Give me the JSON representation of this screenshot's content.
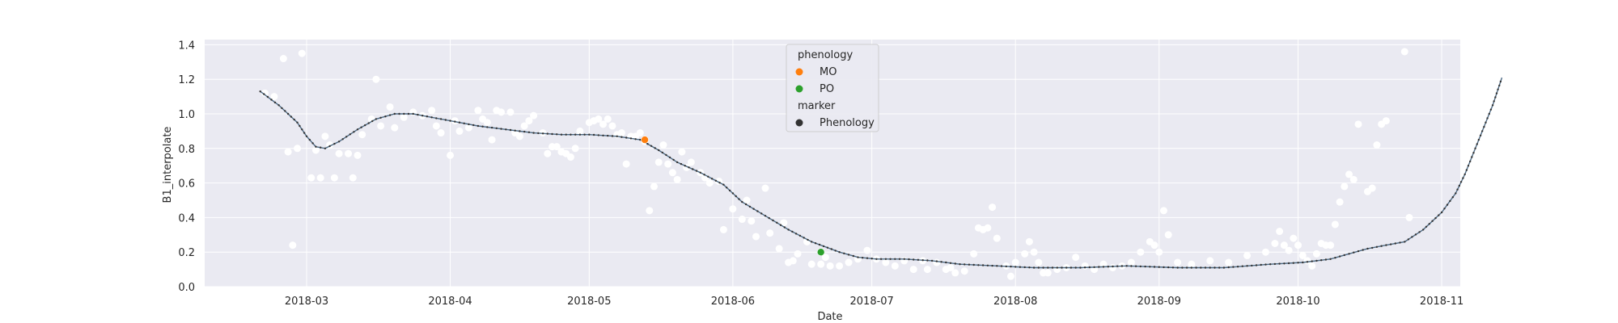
{
  "chart_data": {
    "type": "scatter",
    "title": "",
    "xlabel": "Date",
    "ylabel": "B1_interpolate",
    "xlim": [
      "2018-02-07",
      "2018-11-05"
    ],
    "ylim": [
      0,
      1.43
    ],
    "grid": true,
    "x_ticks": [
      "2018-03-01",
      "2018-04-01",
      "2018-05-01",
      "2018-06-01",
      "2018-07-01",
      "2018-08-01",
      "2018-09-01",
      "2018-10-01",
      "2018-11-01"
    ],
    "x_tick_labels": [
      "2018-03",
      "2018-04",
      "2018-05",
      "2018-06",
      "2018-07",
      "2018-08",
      "2018-09",
      "2018-10",
      "2018-11"
    ],
    "y_ticks": [
      0.0,
      0.2,
      0.4,
      0.6,
      0.8,
      1.0,
      1.2,
      1.4
    ],
    "y_tick_labels": [
      "0.0",
      "0.2",
      "0.4",
      "0.6",
      "0.8",
      "1.0",
      "1.2",
      "1.4"
    ],
    "colors": {
      "background": "#eaeaf2",
      "grid": "#ffffff",
      "observations": "#ffffff",
      "curve": "#4c6a85",
      "MO": "#ff7f0e",
      "PO": "#2ca02c",
      "marker": "#333333"
    },
    "legend": {
      "placement": "top-center",
      "title_hue": "phenology",
      "entries": [
        {
          "label": "MO",
          "color": "#ff7f0e"
        },
        {
          "label": "PO",
          "color": "#2ca02c"
        }
      ],
      "title_marker": "marker",
      "marker_entries": [
        {
          "label": "Phenology",
          "color": "#333333"
        }
      ]
    },
    "observations": [
      [
        "2018-02-20",
        1.12
      ],
      [
        "2018-02-22",
        1.1
      ],
      [
        "2018-02-24",
        1.32
      ],
      [
        "2018-02-25",
        0.78
      ],
      [
        "2018-02-26",
        0.24
      ],
      [
        "2018-02-27",
        0.8
      ],
      [
        "2018-02-28",
        1.35
      ],
      [
        "2018-03-02",
        0.63
      ],
      [
        "2018-03-03",
        0.79
      ],
      [
        "2018-03-04",
        0.63
      ],
      [
        "2018-03-05",
        0.87
      ],
      [
        "2018-03-06",
        0.82
      ],
      [
        "2018-03-07",
        0.63
      ],
      [
        "2018-03-08",
        0.77
      ],
      [
        "2018-03-10",
        0.77
      ],
      [
        "2018-03-11",
        0.63
      ],
      [
        "2018-03-12",
        0.76
      ],
      [
        "2018-03-13",
        0.88
      ],
      [
        "2018-03-15",
        0.97
      ],
      [
        "2018-03-16",
        1.2
      ],
      [
        "2018-03-17",
        0.93
      ],
      [
        "2018-03-19",
        1.04
      ],
      [
        "2018-03-20",
        0.92
      ],
      [
        "2018-03-22",
        0.98
      ],
      [
        "2018-03-24",
        1.01
      ],
      [
        "2018-03-26",
        0.99
      ],
      [
        "2018-03-28",
        1.02
      ],
      [
        "2018-03-29",
        0.93
      ],
      [
        "2018-03-30",
        0.89
      ],
      [
        "2018-04-01",
        0.76
      ],
      [
        "2018-04-02",
        0.96
      ],
      [
        "2018-04-03",
        0.9
      ],
      [
        "2018-04-05",
        0.92
      ],
      [
        "2018-04-07",
        1.02
      ],
      [
        "2018-04-08",
        0.97
      ],
      [
        "2018-04-09",
        0.95
      ],
      [
        "2018-04-10",
        0.85
      ],
      [
        "2018-04-11",
        1.02
      ],
      [
        "2018-04-12",
        1.01
      ],
      [
        "2018-04-14",
        1.01
      ],
      [
        "2018-04-15",
        0.89
      ],
      [
        "2018-04-16",
        0.87
      ],
      [
        "2018-04-17",
        0.93
      ],
      [
        "2018-04-18",
        0.96
      ],
      [
        "2018-04-19",
        0.99
      ],
      [
        "2018-04-21",
        0.89
      ],
      [
        "2018-04-22",
        0.77
      ],
      [
        "2018-04-23",
        0.81
      ],
      [
        "2018-04-24",
        0.81
      ],
      [
        "2018-04-25",
        0.78
      ],
      [
        "2018-04-26",
        0.77
      ],
      [
        "2018-04-27",
        0.75
      ],
      [
        "2018-04-28",
        0.8
      ],
      [
        "2018-04-29",
        0.9
      ],
      [
        "2018-05-01",
        0.95
      ],
      [
        "2018-05-02",
        0.96
      ],
      [
        "2018-05-03",
        0.97
      ],
      [
        "2018-05-04",
        0.94
      ],
      [
        "2018-05-05",
        0.97
      ],
      [
        "2018-05-06",
        0.93
      ],
      [
        "2018-05-07",
        0.88
      ],
      [
        "2018-05-08",
        0.89
      ],
      [
        "2018-05-09",
        0.71
      ],
      [
        "2018-05-10",
        0.87
      ],
      [
        "2018-05-11",
        0.87
      ],
      [
        "2018-05-12",
        0.89
      ],
      [
        "2018-05-13",
        0.84
      ],
      [
        "2018-05-14",
        0.44
      ],
      [
        "2018-05-15",
        0.58
      ],
      [
        "2018-05-16",
        0.72
      ],
      [
        "2018-05-17",
        0.82
      ],
      [
        "2018-05-18",
        0.71
      ],
      [
        "2018-05-19",
        0.66
      ],
      [
        "2018-05-20",
        0.62
      ],
      [
        "2018-05-21",
        0.78
      ],
      [
        "2018-05-22",
        0.69
      ],
      [
        "2018-05-23",
        0.72
      ],
      [
        "2018-05-25",
        0.66
      ],
      [
        "2018-05-26",
        0.63
      ],
      [
        "2018-05-27",
        0.6
      ],
      [
        "2018-05-29",
        0.61
      ],
      [
        "2018-05-30",
        0.33
      ],
      [
        "2018-06-01",
        0.45
      ],
      [
        "2018-06-03",
        0.39
      ],
      [
        "2018-06-04",
        0.5
      ],
      [
        "2018-06-05",
        0.38
      ],
      [
        "2018-06-06",
        0.29
      ],
      [
        "2018-06-08",
        0.57
      ],
      [
        "2018-06-09",
        0.31
      ],
      [
        "2018-06-11",
        0.22
      ],
      [
        "2018-06-12",
        0.37
      ],
      [
        "2018-06-13",
        0.14
      ],
      [
        "2018-06-14",
        0.15
      ],
      [
        "2018-06-15",
        0.19
      ],
      [
        "2018-06-17",
        0.26
      ],
      [
        "2018-06-18",
        0.13
      ],
      [
        "2018-06-20",
        0.13
      ],
      [
        "2018-06-21",
        0.17
      ],
      [
        "2018-06-22",
        0.12
      ],
      [
        "2018-06-24",
        0.12
      ],
      [
        "2018-06-26",
        0.14
      ],
      [
        "2018-06-28",
        0.16
      ],
      [
        "2018-06-30",
        0.21
      ],
      [
        "2018-07-02",
        0.16
      ],
      [
        "2018-07-04",
        0.14
      ],
      [
        "2018-07-06",
        0.12
      ],
      [
        "2018-07-08",
        0.15
      ],
      [
        "2018-07-10",
        0.1
      ],
      [
        "2018-07-12",
        0.15
      ],
      [
        "2018-07-13",
        0.1
      ],
      [
        "2018-07-15",
        0.14
      ],
      [
        "2018-07-17",
        0.1
      ],
      [
        "2018-07-18",
        0.11
      ],
      [
        "2018-07-19",
        0.08
      ],
      [
        "2018-07-21",
        0.09
      ],
      [
        "2018-07-23",
        0.19
      ],
      [
        "2018-07-24",
        0.34
      ],
      [
        "2018-07-25",
        0.33
      ],
      [
        "2018-07-26",
        0.34
      ],
      [
        "2018-07-27",
        0.46
      ],
      [
        "2018-07-28",
        0.28
      ],
      [
        "2018-07-30",
        0.12
      ],
      [
        "2018-07-31",
        0.06
      ],
      [
        "2018-08-01",
        0.14
      ],
      [
        "2018-08-03",
        0.19
      ],
      [
        "2018-08-04",
        0.26
      ],
      [
        "2018-08-05",
        0.2
      ],
      [
        "2018-08-06",
        0.14
      ],
      [
        "2018-08-07",
        0.08
      ],
      [
        "2018-08-08",
        0.08
      ],
      [
        "2018-08-10",
        0.1
      ],
      [
        "2018-08-12",
        0.11
      ],
      [
        "2018-08-14",
        0.17
      ],
      [
        "2018-08-16",
        0.12
      ],
      [
        "2018-08-18",
        0.1
      ],
      [
        "2018-08-20",
        0.13
      ],
      [
        "2018-08-22",
        0.11
      ],
      [
        "2018-08-24",
        0.12
      ],
      [
        "2018-08-26",
        0.14
      ],
      [
        "2018-08-28",
        0.2
      ],
      [
        "2018-08-30",
        0.26
      ],
      [
        "2018-08-31",
        0.24
      ],
      [
        "2018-09-01",
        0.2
      ],
      [
        "2018-09-02",
        0.44
      ],
      [
        "2018-09-03",
        0.3
      ],
      [
        "2018-09-05",
        0.14
      ],
      [
        "2018-09-08",
        0.13
      ],
      [
        "2018-09-12",
        0.15
      ],
      [
        "2018-09-16",
        0.14
      ],
      [
        "2018-09-20",
        0.18
      ],
      [
        "2018-09-24",
        0.2
      ],
      [
        "2018-09-26",
        0.25
      ],
      [
        "2018-09-27",
        0.32
      ],
      [
        "2018-09-28",
        0.24
      ],
      [
        "2018-09-29",
        0.21
      ],
      [
        "2018-09-30",
        0.28
      ],
      [
        "2018-10-01",
        0.24
      ],
      [
        "2018-10-02",
        0.18
      ],
      [
        "2018-10-03",
        0.15
      ],
      [
        "2018-10-04",
        0.12
      ],
      [
        "2018-10-05",
        0.19
      ],
      [
        "2018-10-06",
        0.25
      ],
      [
        "2018-10-07",
        0.24
      ],
      [
        "2018-10-08",
        0.24
      ],
      [
        "2018-10-09",
        0.36
      ],
      [
        "2018-10-10",
        0.49
      ],
      [
        "2018-10-11",
        0.58
      ],
      [
        "2018-10-12",
        0.65
      ],
      [
        "2018-10-13",
        0.62
      ],
      [
        "2018-10-14",
        0.94
      ],
      [
        "2018-10-16",
        0.55
      ],
      [
        "2018-10-17",
        0.57
      ],
      [
        "2018-10-18",
        0.82
      ],
      [
        "2018-10-19",
        0.94
      ],
      [
        "2018-10-20",
        0.96
      ],
      [
        "2018-10-24",
        1.36
      ],
      [
        "2018-10-25",
        0.4
      ]
    ],
    "interpolated_curve": [
      [
        "2018-02-19",
        1.13
      ],
      [
        "2018-02-23",
        1.05
      ],
      [
        "2018-02-27",
        0.95
      ],
      [
        "2018-03-01",
        0.87
      ],
      [
        "2018-03-03",
        0.81
      ],
      [
        "2018-03-05",
        0.8
      ],
      [
        "2018-03-08",
        0.84
      ],
      [
        "2018-03-12",
        0.91
      ],
      [
        "2018-03-16",
        0.97
      ],
      [
        "2018-03-20",
        1.0
      ],
      [
        "2018-03-24",
        1.0
      ],
      [
        "2018-03-28",
        0.98
      ],
      [
        "2018-04-01",
        0.96
      ],
      [
        "2018-04-07",
        0.93
      ],
      [
        "2018-04-13",
        0.91
      ],
      [
        "2018-04-19",
        0.89
      ],
      [
        "2018-04-25",
        0.88
      ],
      [
        "2018-05-01",
        0.88
      ],
      [
        "2018-05-07",
        0.87
      ],
      [
        "2018-05-12",
        0.85
      ],
      [
        "2018-05-16",
        0.79
      ],
      [
        "2018-05-20",
        0.72
      ],
      [
        "2018-05-25",
        0.66
      ],
      [
        "2018-05-30",
        0.59
      ],
      [
        "2018-06-03",
        0.49
      ],
      [
        "2018-06-08",
        0.41
      ],
      [
        "2018-06-13",
        0.33
      ],
      [
        "2018-06-18",
        0.26
      ],
      [
        "2018-06-24",
        0.2
      ],
      [
        "2018-06-28",
        0.17
      ],
      [
        "2018-07-02",
        0.16
      ],
      [
        "2018-07-08",
        0.16
      ],
      [
        "2018-07-14",
        0.15
      ],
      [
        "2018-07-20",
        0.13
      ],
      [
        "2018-07-28",
        0.12
      ],
      [
        "2018-08-05",
        0.11
      ],
      [
        "2018-08-15",
        0.11
      ],
      [
        "2018-08-25",
        0.12
      ],
      [
        "2018-09-05",
        0.11
      ],
      [
        "2018-09-15",
        0.11
      ],
      [
        "2018-09-25",
        0.13
      ],
      [
        "2018-10-02",
        0.14
      ],
      [
        "2018-10-08",
        0.16
      ],
      [
        "2018-10-12",
        0.19
      ],
      [
        "2018-10-16",
        0.22
      ],
      [
        "2018-10-20",
        0.24
      ],
      [
        "2018-10-24",
        0.26
      ],
      [
        "2018-10-28",
        0.33
      ],
      [
        "2018-11-01",
        0.43
      ],
      [
        "2018-11-04",
        0.54
      ],
      [
        "2018-11-06",
        0.65
      ],
      [
        "2018-11-09",
        0.85
      ],
      [
        "2018-11-12",
        1.05
      ],
      [
        "2018-11-14",
        1.21
      ]
    ],
    "phenology_points": [
      {
        "label": "MO",
        "x": "2018-05-13",
        "y": 0.85,
        "color": "#ff7f0e"
      },
      {
        "label": "PO",
        "x": "2018-06-20",
        "y": 0.2,
        "color": "#2ca02c"
      }
    ]
  }
}
